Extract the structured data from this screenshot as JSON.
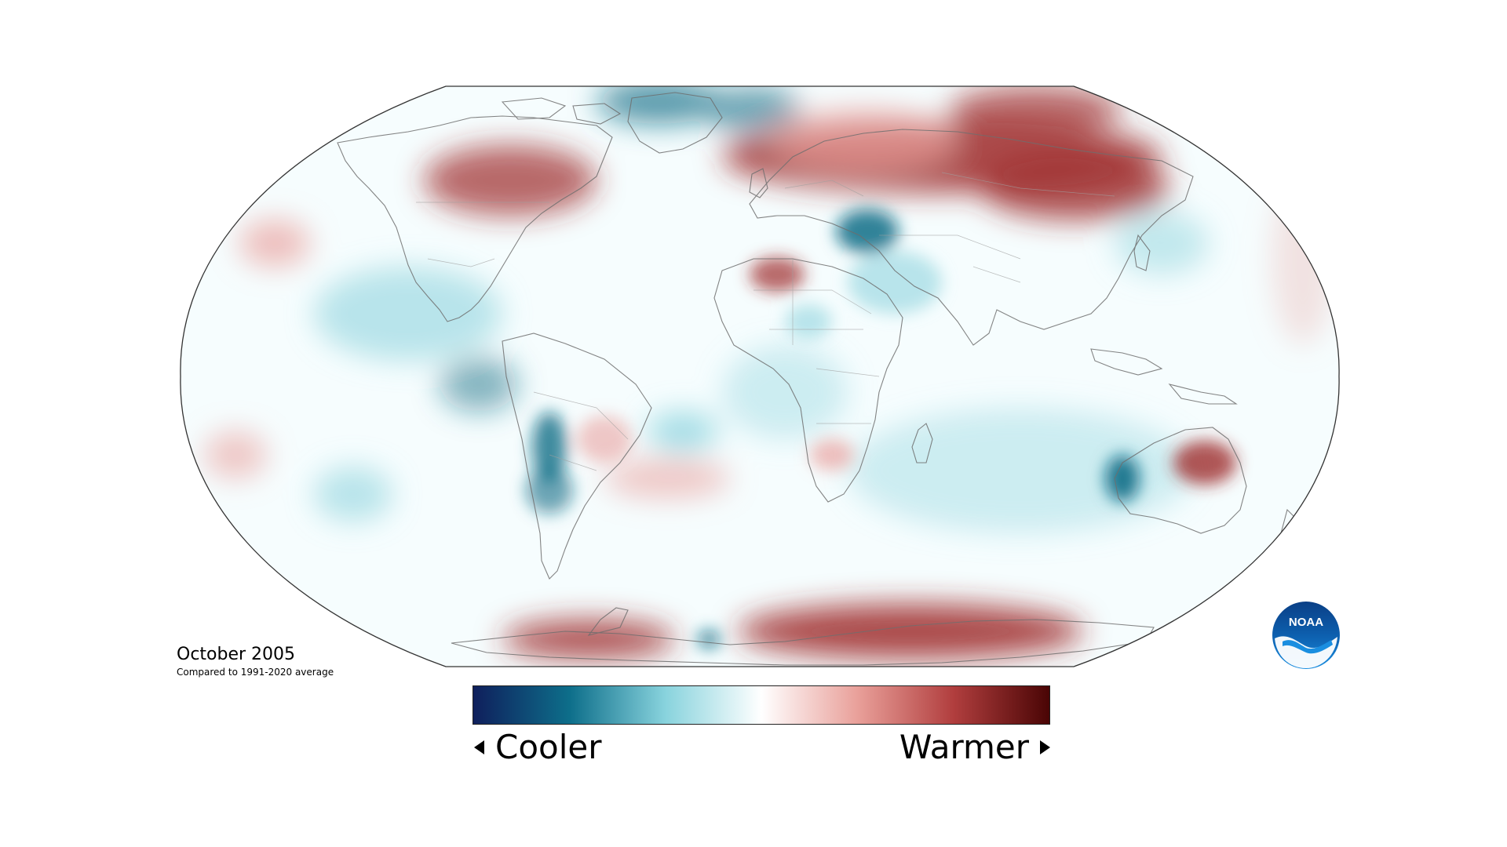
{
  "map": {
    "projection": "robinson",
    "colors": {
      "cool_strong": "#0d6d86",
      "cool_light": "#8fd4de",
      "neutral": "#ffffff",
      "warm_light": "#e9a4a0",
      "warm_strong": "#9e2a2a"
    }
  },
  "caption": {
    "title": "October 2005",
    "subtitle": "Compared to 1991-2020 average"
  },
  "legend": {
    "low_label": "Cooler",
    "high_label": "Warmer",
    "gradient": [
      "#0f1f5c",
      "#0d6e8a",
      "#88d3dd",
      "#ffffff",
      "#e9a09a",
      "#b13e3e",
      "#4a0505"
    ]
  },
  "logo": {
    "text": "NOAA",
    "icon": "noaa-logo-icon"
  }
}
